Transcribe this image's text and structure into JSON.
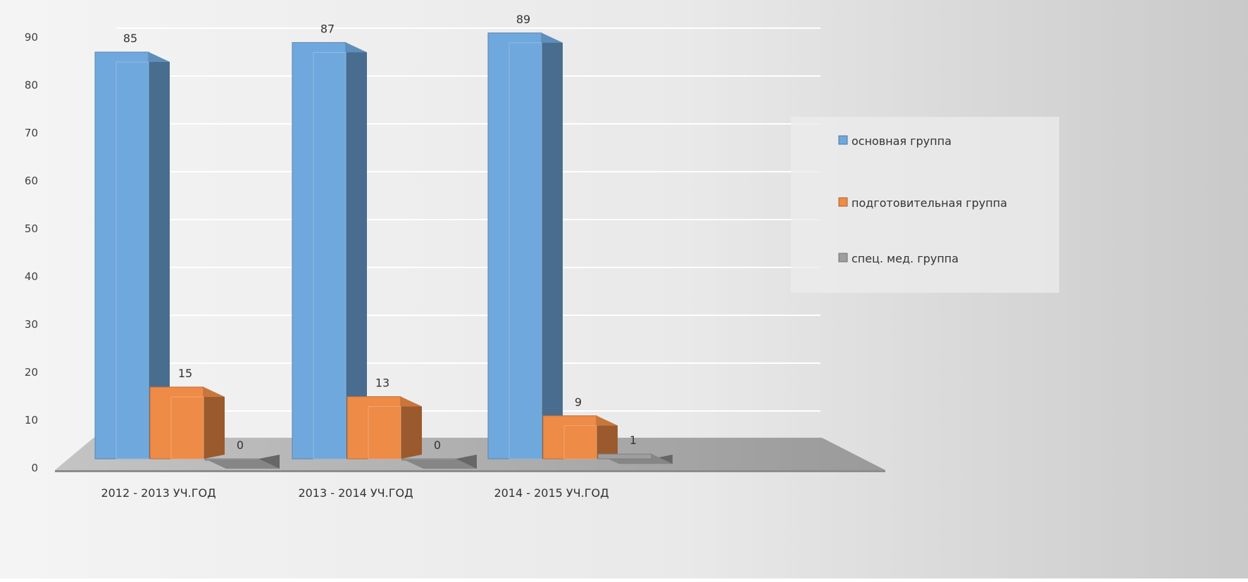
{
  "chart_data": {
    "type": "bar",
    "style": "3d-clustered-column",
    "title": "",
    "xlabel": "",
    "ylabel": "",
    "categories": [
      "2012 - 2013 УЧ.ГОД",
      "2013 - 2014 УЧ.ГОД",
      "2014 - 2015 УЧ.ГОД"
    ],
    "series": [
      {
        "name": "основная группа",
        "values": [
          85,
          87,
          89
        ],
        "color": "#6FA8DC"
      },
      {
        "name": "подготовительная группа",
        "values": [
          15,
          13,
          9
        ],
        "color": "#ED8B47"
      },
      {
        "name": "спец. мед. группа",
        "values": [
          0,
          0,
          1
        ],
        "color": "#9E9E9E"
      }
    ],
    "ylim": [
      0,
      90
    ],
    "yticks": [
      0,
      10,
      20,
      30,
      40,
      50,
      60,
      70,
      80,
      90
    ],
    "grid": true,
    "legend_position": "right",
    "data_labels": true
  }
}
